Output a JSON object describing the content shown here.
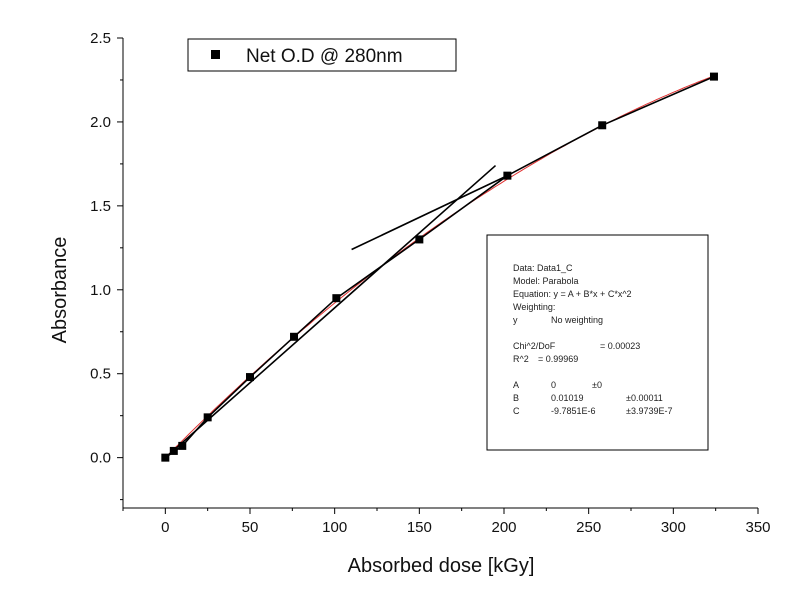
{
  "chart_data": {
    "type": "scatter",
    "xlabel": "Absorbed dose [kGy]",
    "ylabel": "Absorbance",
    "xlim": [
      -25,
      350
    ],
    "ylim": [
      -0.3,
      2.5
    ],
    "x_ticks": [
      0,
      50,
      100,
      150,
      200,
      250,
      300,
      350
    ],
    "y_ticks": [
      0.0,
      0.5,
      1.0,
      1.5,
      2.0,
      2.5
    ],
    "x_tick_labels": [
      "0",
      "50",
      "100",
      "150",
      "200",
      "250",
      "300",
      "350"
    ],
    "y_tick_labels": [
      "0.0",
      "0.5",
      "1.0",
      "1.5",
      "2.0",
      "2.5"
    ],
    "grid": false,
    "legend_position": "top-left",
    "legend": [
      "Net O.D @ 280nm"
    ],
    "series": [
      {
        "name": "Net O.D @ 280nm",
        "marker": "square",
        "color": "#000000",
        "x": [
          0,
          5,
          10,
          25,
          50,
          76,
          101,
          150,
          202,
          258,
          324
        ],
        "y": [
          0.0,
          0.04,
          0.07,
          0.24,
          0.48,
          0.72,
          0.95,
          1.3,
          1.68,
          1.98,
          2.27
        ]
      }
    ],
    "fit_curve": {
      "color": "#e03030",
      "model": "parabola",
      "A": 0,
      "B": 0.01019,
      "C": -9.7851e-06,
      "x_range": [
        0,
        324
      ]
    },
    "polyline": {
      "color": "#000000",
      "x": [
        0,
        10,
        25,
        50,
        76,
        101,
        150,
        202,
        258,
        324
      ],
      "y": [
        0.0,
        0.07,
        0.24,
        0.48,
        0.72,
        0.95,
        1.3,
        1.68,
        1.98,
        2.27
      ]
    },
    "tangent_lines": [
      {
        "color": "#000000",
        "x": [
          0,
          195
        ],
        "y": [
          0.0,
          1.74
        ]
      },
      {
        "color": "#000000",
        "x": [
          110,
          202
        ],
        "y": [
          1.24,
          1.68
        ]
      }
    ],
    "fit_info": {
      "lines": [
        {
          "label": "Data: Data1_C",
          "value": "",
          "err": ""
        },
        {
          "label": "Model: Parabola",
          "value": "",
          "err": ""
        },
        {
          "label": "Equation: y = A + B*x + C*x^2",
          "value": "",
          "err": ""
        },
        {
          "label": "Weighting:",
          "value": "",
          "err": ""
        },
        {
          "label": "y",
          "value": "No weighting",
          "err": ""
        },
        {
          "label": "",
          "value": "",
          "err": ""
        },
        {
          "label": "Chi^2/DoF",
          "value": "= 0.00023",
          "err": ""
        },
        {
          "label": "R^2",
          "value": "= 0.99969",
          "err": ""
        },
        {
          "label": "",
          "value": "",
          "err": ""
        },
        {
          "label": "A",
          "value": "0",
          "err": "±0"
        },
        {
          "label": "B",
          "value": "0.01019",
          "err": "±0.00011"
        },
        {
          "label": "C",
          "value": "-9.7851E-6",
          "err": "±3.9739E-7"
        }
      ]
    }
  }
}
